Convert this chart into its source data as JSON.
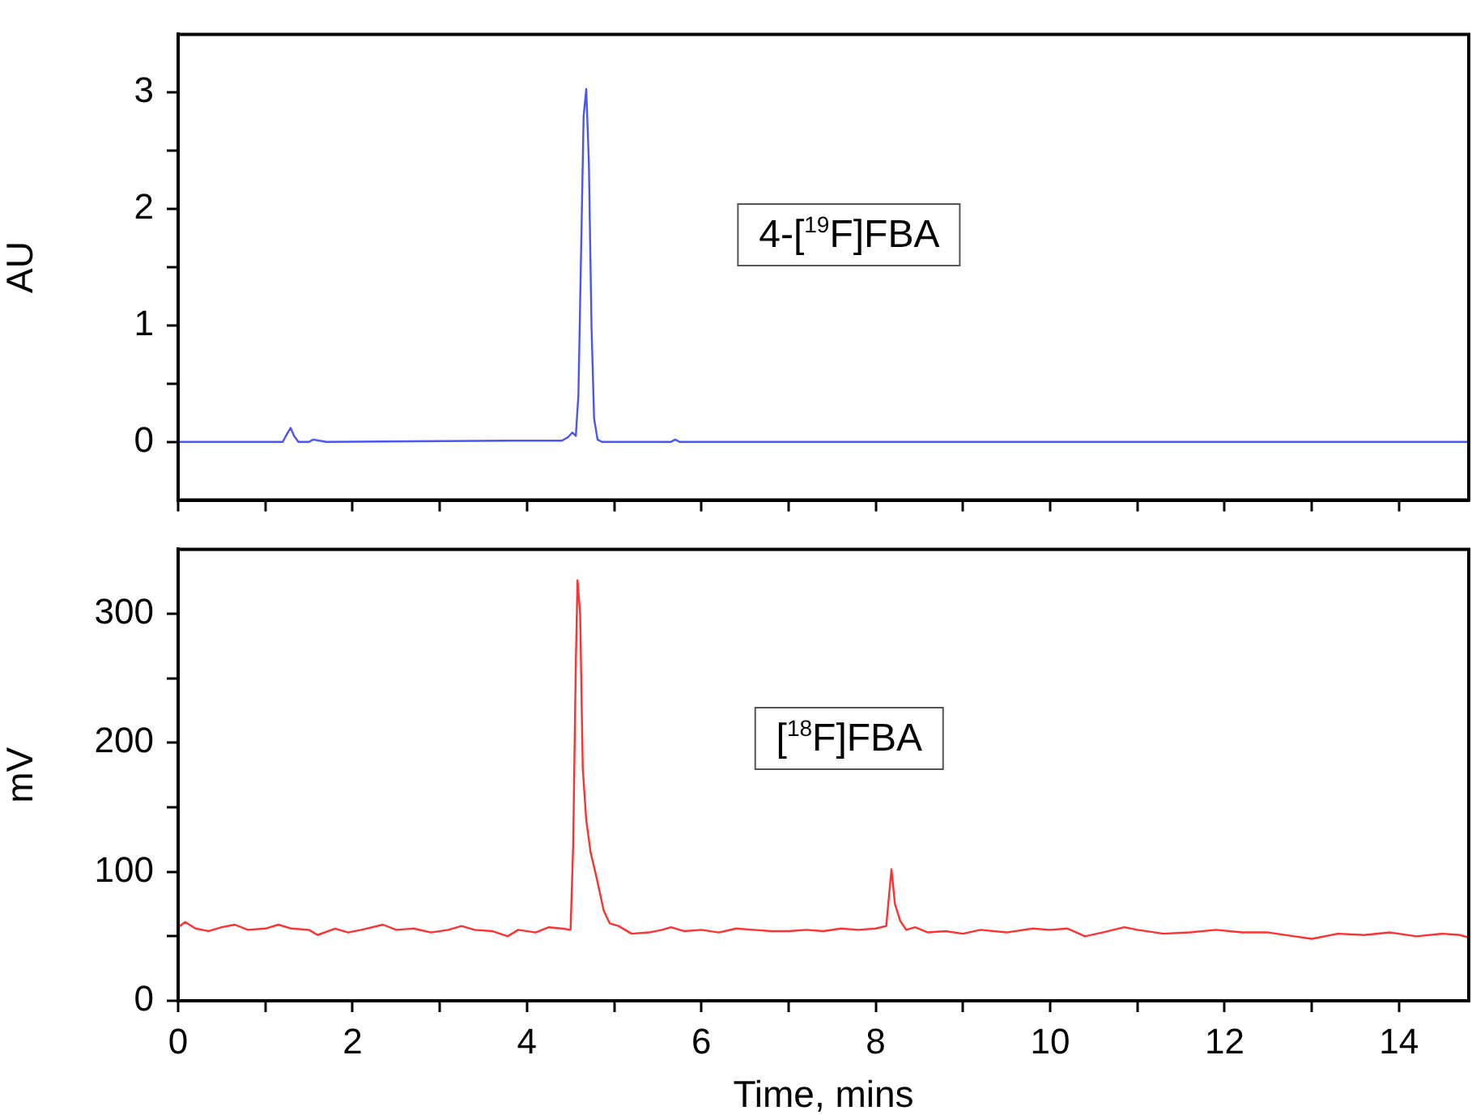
{
  "chart_data": [
    {
      "type": "line",
      "ylabel": "AU",
      "annotations": [
        "4-[$^{19}$F]FBA"
      ],
      "xlim": [
        0,
        14.8
      ],
      "xticks": [
        0,
        {
          "value": 1,
          "label": null
        },
        2,
        {
          "value": 3,
          "label": null
        },
        4,
        {
          "value": 5,
          "label": null
        },
        6,
        {
          "value": 7,
          "label": null
        },
        8,
        {
          "value": 9,
          "label": null
        },
        10,
        {
          "value": 11,
          "label": null
        },
        12,
        {
          "value": 13,
          "label": null
        },
        14
      ],
      "ylim": [
        -0.5,
        3.5
      ],
      "yticks": [
        0,
        {
          "value": 0.5,
          "label": null
        },
        1,
        {
          "value": 1.5,
          "label": null
        },
        2,
        {
          "value": 2.5,
          "label": null
        },
        3
      ],
      "tick_labels": "y",
      "grid": false,
      "legend": false,
      "marker": "none",
      "line_style": "solid",
      "series": [
        {
          "color": "#4a55f5",
          "x": [
            0,
            1.2,
            1.25,
            1.29,
            1.33,
            1.38,
            1.5,
            1.55,
            1.62,
            1.7,
            3.8,
            4.4,
            4.47,
            4.52,
            4.56,
            4.59,
            4.62,
            4.65,
            4.68,
            4.71,
            4.74,
            4.77,
            4.81,
            4.86,
            5.65,
            5.7,
            5.75,
            14.8
          ],
          "values": [
            0,
            0,
            0.07,
            0.12,
            0.05,
            0,
            0,
            0.02,
            0.01,
            0,
            0.01,
            0.01,
            0.04,
            0.08,
            0.05,
            0.4,
            1.6,
            2.8,
            3.03,
            2.4,
            1.0,
            0.2,
            0.02,
            0,
            0,
            0.02,
            0,
            0
          ]
        }
      ]
    },
    {
      "type": "line",
      "xlabel": "Time, mins",
      "ylabel": "mV",
      "annotations": [
        "[$^{18}$F]FBA"
      ],
      "xlim": [
        0,
        14.8
      ],
      "xticks": [
        0,
        {
          "value": 1,
          "label": null
        },
        2,
        {
          "value": 3,
          "label": null
        },
        4,
        {
          "value": 5,
          "label": null
        },
        6,
        {
          "value": 7,
          "label": null
        },
        8,
        {
          "value": 9,
          "label": null
        },
        10,
        {
          "value": 11,
          "label": null
        },
        12,
        {
          "value": 13,
          "label": null
        },
        14
      ],
      "ylim": [
        0,
        350
      ],
      "yticks": [
        0,
        {
          "value": 50,
          "label": null
        },
        100,
        {
          "value": 150,
          "label": null
        },
        200,
        {
          "value": 250,
          "label": null
        },
        300
      ],
      "grid": false,
      "legend": false,
      "marker": "none",
      "line_style": "solid",
      "series": [
        {
          "color": "#ff3030",
          "x": [
            0,
            0.08,
            0.2,
            0.35,
            0.5,
            0.65,
            0.8,
            1.0,
            1.15,
            1.3,
            1.5,
            1.6,
            1.8,
            1.95,
            2.1,
            2.35,
            2.5,
            2.7,
            2.9,
            3.1,
            3.25,
            3.4,
            3.6,
            3.78,
            3.9,
            4.1,
            4.25,
            4.4,
            4.5,
            4.53,
            4.56,
            4.58,
            4.61,
            4.64,
            4.68,
            4.73,
            4.8,
            4.88,
            4.95,
            5.05,
            5.2,
            5.4,
            5.55,
            5.65,
            5.8,
            6.0,
            6.2,
            6.4,
            6.6,
            6.8,
            7.0,
            7.2,
            7.4,
            7.6,
            7.8,
            8.0,
            8.12,
            8.18,
            8.22,
            8.28,
            8.35,
            8.45,
            8.6,
            8.8,
            9.0,
            9.2,
            9.5,
            9.8,
            10.0,
            10.2,
            10.4,
            10.6,
            10.85,
            11.0,
            11.3,
            11.6,
            11.9,
            12.2,
            12.5,
            12.8,
            13.0,
            13.3,
            13.6,
            13.9,
            14.2,
            14.5,
            14.7,
            14.8
          ],
          "values": [
            57,
            61,
            56,
            54,
            57,
            59,
            55,
            56,
            59,
            56,
            55,
            51,
            56,
            53,
            55,
            59,
            55,
            56,
            53,
            55,
            58,
            55,
            54,
            50,
            55,
            53,
            57,
            56,
            55,
            120,
            260,
            326,
            300,
            180,
            140,
            115,
            95,
            70,
            60,
            58,
            52,
            53,
            55,
            57,
            54,
            55,
            53,
            56,
            55,
            54,
            54,
            55,
            54,
            56,
            55,
            56,
            58,
            102,
            75,
            62,
            55,
            57,
            53,
            54,
            52,
            55,
            53,
            56,
            55,
            56,
            50,
            53,
            57,
            55,
            52,
            53,
            55,
            53,
            53,
            50,
            48,
            52,
            51,
            53,
            50,
            52,
            51,
            49
          ]
        }
      ]
    }
  ]
}
